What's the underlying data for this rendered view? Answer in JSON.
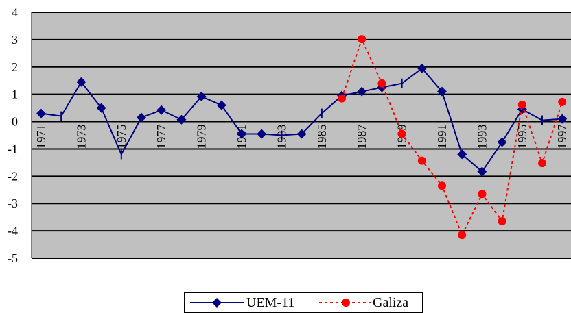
{
  "chart_data": {
    "type": "line",
    "title": "",
    "xlabel": "",
    "ylabel": "",
    "x": [
      1971,
      1972,
      1973,
      1974,
      1975,
      1976,
      1977,
      1978,
      1979,
      1980,
      1981,
      1982,
      1983,
      1984,
      1985,
      1986,
      1987,
      1988,
      1989,
      1990,
      1991,
      1992,
      1993,
      1994,
      1995,
      1996,
      1997
    ],
    "x_tick_labels": [
      "1971",
      "1973",
      "1975",
      "1977",
      "1979",
      "1981",
      "1983",
      "1985",
      "1987",
      "1989",
      "1991",
      "1993",
      "1995",
      "1997"
    ],
    "ylim": [
      -5,
      4
    ],
    "y_ticks": [
      "4",
      "3",
      "2",
      "1",
      "0",
      "-1",
      "-2",
      "-3",
      "-4",
      "-5"
    ],
    "grid": "horizontal",
    "legend_position": "bottom",
    "series": [
      {
        "name": "UEM-11",
        "color": "#000080",
        "style": "solid",
        "marker": "diamond",
        "points": [
          {
            "x": 1971,
            "y": 0.3,
            "m": "diamond"
          },
          {
            "x": 1972,
            "y": 0.2,
            "m": "dash"
          },
          {
            "x": 1973,
            "y": 1.45,
            "m": "diamond"
          },
          {
            "x": 1974,
            "y": 0.5,
            "m": "diamond"
          },
          {
            "x": 1975,
            "y": -1.2,
            "m": "dash"
          },
          {
            "x": 1976,
            "y": 0.15,
            "m": "diamond"
          },
          {
            "x": 1977,
            "y": 0.42,
            "m": "diamond"
          },
          {
            "x": 1978,
            "y": 0.07,
            "m": "diamond"
          },
          {
            "x": 1979,
            "y": 0.92,
            "m": "diamond"
          },
          {
            "x": 1980,
            "y": 0.6,
            "m": "diamond"
          },
          {
            "x": 1981,
            "y": -0.45,
            "m": "diamond"
          },
          {
            "x": 1982,
            "y": -0.45,
            "m": "diamond"
          },
          {
            "x": 1983,
            "y": -0.5,
            "m": "dash"
          },
          {
            "x": 1984,
            "y": -0.45,
            "m": "diamond"
          },
          {
            "x": 1985,
            "y": 0.3,
            "m": "dash"
          },
          {
            "x": 1986,
            "y": 0.95,
            "m": "diamond"
          },
          {
            "x": 1987,
            "y": 1.1,
            "m": "diamond"
          },
          {
            "x": 1988,
            "y": 1.25,
            "m": "diamond"
          },
          {
            "x": 1989,
            "y": 1.4,
            "m": "dash"
          },
          {
            "x": 1990,
            "y": 1.95,
            "m": "diamond"
          },
          {
            "x": 1991,
            "y": 1.1,
            "m": "diamond"
          },
          {
            "x": 1992,
            "y": -1.2,
            "m": "diamond"
          },
          {
            "x": 1993,
            "y": -1.83,
            "m": "diamond"
          },
          {
            "x": 1994,
            "y": -0.75,
            "m": "diamond"
          },
          {
            "x": 1995,
            "y": 0.45,
            "m": "diamond"
          },
          {
            "x": 1996,
            "y": 0.05,
            "m": "dash"
          },
          {
            "x": 1997,
            "y": 0.1,
            "m": "diamond"
          }
        ]
      },
      {
        "name": "Galiza",
        "color": "#ff0000",
        "style": "dotted",
        "marker": "circle",
        "points": [
          {
            "x": 1986,
            "y": 0.85,
            "m": "circle"
          },
          {
            "x": 1987,
            "y": 3.02,
            "m": "circle"
          },
          {
            "x": 1988,
            "y": 1.4,
            "m": "circle"
          },
          {
            "x": 1989,
            "y": -0.45,
            "m": "circle"
          },
          {
            "x": 1990,
            "y": -1.43,
            "m": "circle"
          },
          {
            "x": 1991,
            "y": -2.35,
            "m": "circle"
          },
          {
            "x": 1992,
            "y": -4.15,
            "m": "circle"
          },
          {
            "x": 1993,
            "y": -2.65,
            "m": "circle"
          },
          {
            "x": 1994,
            "y": -3.65,
            "m": "circle"
          },
          {
            "x": 1995,
            "y": 0.62,
            "m": "circle"
          },
          {
            "x": 1996,
            "y": -1.52,
            "m": "circle"
          },
          {
            "x": 1997,
            "y": 0.72,
            "m": "circle"
          }
        ]
      }
    ]
  }
}
